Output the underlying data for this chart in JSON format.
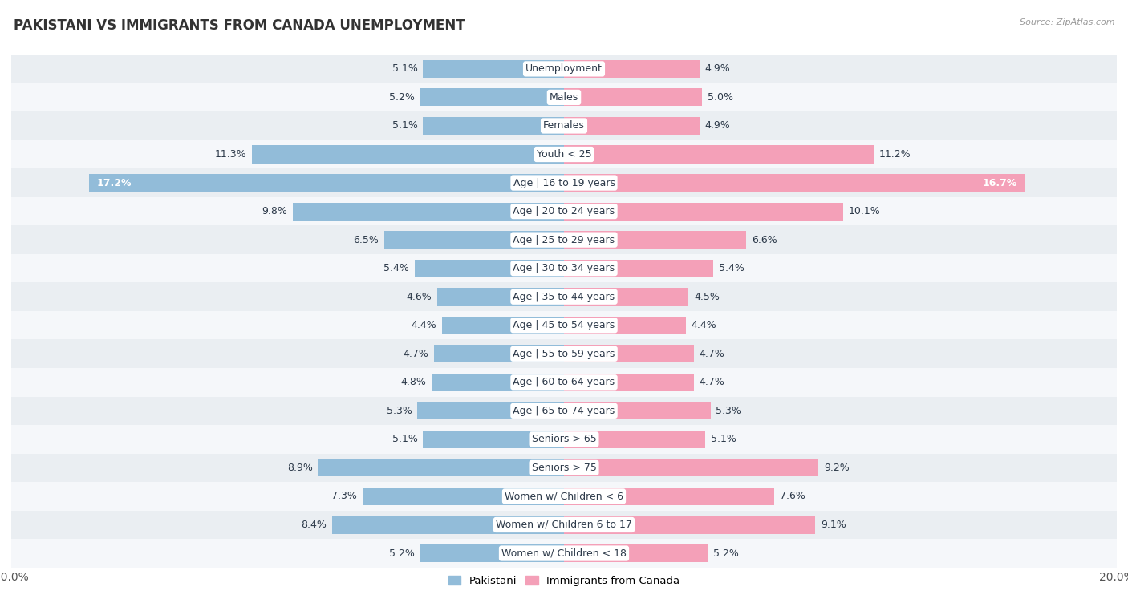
{
  "title": "PAKISTANI VS IMMIGRANTS FROM CANADA UNEMPLOYMENT",
  "source": "Source: ZipAtlas.com",
  "categories": [
    "Unemployment",
    "Males",
    "Females",
    "Youth < 25",
    "Age | 16 to 19 years",
    "Age | 20 to 24 years",
    "Age | 25 to 29 years",
    "Age | 30 to 34 years",
    "Age | 35 to 44 years",
    "Age | 45 to 54 years",
    "Age | 55 to 59 years",
    "Age | 60 to 64 years",
    "Age | 65 to 74 years",
    "Seniors > 65",
    "Seniors > 75",
    "Women w/ Children < 6",
    "Women w/ Children 6 to 17",
    "Women w/ Children < 18"
  ],
  "pakistani": [
    5.1,
    5.2,
    5.1,
    11.3,
    17.2,
    9.8,
    6.5,
    5.4,
    4.6,
    4.4,
    4.7,
    4.8,
    5.3,
    5.1,
    8.9,
    7.3,
    8.4,
    5.2
  ],
  "immigrants": [
    4.9,
    5.0,
    4.9,
    11.2,
    16.7,
    10.1,
    6.6,
    5.4,
    4.5,
    4.4,
    4.7,
    4.7,
    5.3,
    5.1,
    9.2,
    7.6,
    9.1,
    5.2
  ],
  "pakistani_color": "#92bcd9",
  "immigrants_color": "#f4a0b8",
  "pakistani_label": "Pakistani",
  "immigrants_label": "Immigrants from Canada",
  "axis_max": 20.0,
  "bg_color": "#ffffff",
  "row_bg_light": "#eaeef2",
  "row_bg_white": "#f5f7fa",
  "label_fontsize": 9.0,
  "title_fontsize": 12,
  "bar_height": 0.62,
  "x_tick_label": "20.0%",
  "label_color": "#2d3a4a",
  "value_color": "#2d3a4a"
}
